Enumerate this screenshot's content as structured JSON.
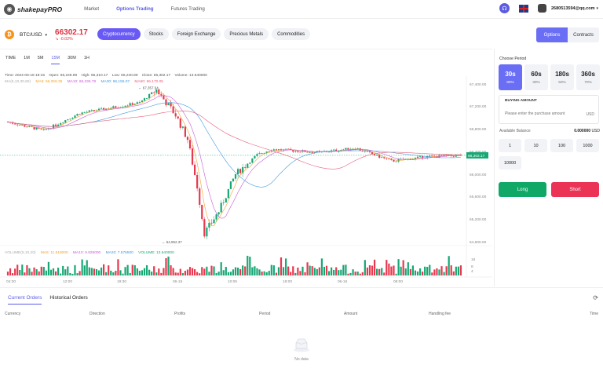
{
  "nav": {
    "logo_text": "shakepayPRO",
    "items": [
      "Market",
      "Options Trading",
      "Futures Trading"
    ],
    "active_index": 1,
    "email": "2680513594@qq.com"
  },
  "ticker": {
    "pair": "BTC/USD",
    "price": "66302.17",
    "change": "-0.02%",
    "categories": [
      "Cryptocurrency",
      "Stocks",
      "Foreign Exchange",
      "Precious Metals",
      "Commodities"
    ],
    "active_category": 0,
    "modes": [
      "Options",
      "Contracts"
    ]
  },
  "chart": {
    "intervals": [
      "TIME",
      "1M",
      "5M",
      "15M",
      "30M",
      "1H"
    ],
    "active_interval": 3,
    "ohlc": {
      "time": "Time: 2024-06-18 18:15",
      "open": "Open: 66,249.99",
      "high": "High: 66,310.17",
      "low": "Low: 66,240.89",
      "close": "Close: 66,302.17",
      "volume": "Volume: 13.640000"
    },
    "ma": [
      "MA(5,10,30,60)",
      "MA5: 66,259.35",
      "MA10: 66,236.78",
      "MA30: 66,155.07",
      "MA60: 66,170.05"
    ],
    "vol": [
      "VOLUME(5,10,20)",
      "MA5: 11.518000",
      "MA10: 9.825000",
      "MA20: 7.576500",
      "VOLUME: 13.640000"
    ]
  },
  "chart_data": {
    "type": "candlestick",
    "y_ticks": [
      "67,400.00",
      "67,200.00",
      "66,800.00",
      "66,400.00",
      "66,000.00",
      "65,600.00",
      "65,200.00",
      "64,900.00"
    ],
    "x_ticks": [
      "04:30",
      "12:00",
      "19:30",
      "06-15",
      "10:05",
      "18:00",
      "06-16",
      "08:00"
    ],
    "volume_ticks": [
      "16",
      "8",
      "4"
    ],
    "last_price": "66,302.17",
    "max_label": "67,357.64",
    "min_label": "64,952.37",
    "ylim": [
      64900,
      67450
    ],
    "colors": {
      "up": "#16a774",
      "down": "#e8384f",
      "ma5": "#f0a330",
      "ma10": "#c85bd6",
      "ma30": "#3f9ae0",
      "ma60": "#e85c7c"
    }
  },
  "trade": {
    "choose_period": "Choose Period",
    "periods": [
      {
        "label": "30s",
        "pct": "80%"
      },
      {
        "label": "60s",
        "pct": "30%"
      },
      {
        "label": "180s",
        "pct": "50%"
      },
      {
        "label": "360s",
        "pct": "70%"
      }
    ],
    "active_period": 0,
    "buying_amount": "BUYING AMOUNT",
    "amount_placeholder": "Please enter the purchase amount",
    "amount_unit": "USD",
    "balance_label": "Available Balance",
    "balance_value": "0.000000",
    "balance_unit": "USD",
    "quick": [
      "1",
      "10",
      "100",
      "1000",
      "10000"
    ],
    "long": "Long",
    "short": "Short"
  },
  "orders": {
    "tabs": [
      "Current Orders",
      "Historical Orders"
    ],
    "columns": [
      "Currency",
      "Direction",
      "Profits",
      "Period",
      "Amount",
      "Handling fee",
      "Time"
    ],
    "empty_text": "No data"
  }
}
